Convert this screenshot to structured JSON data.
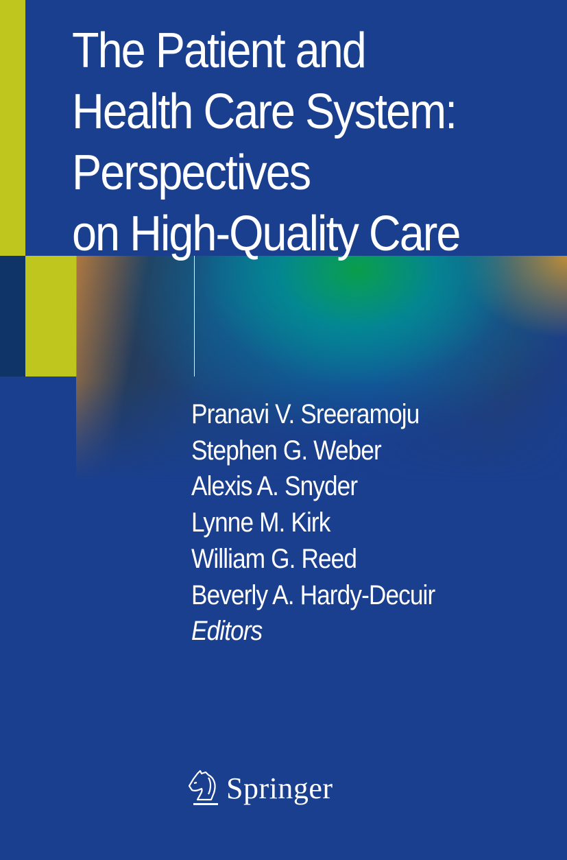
{
  "cover": {
    "title_lines": [
      "The Patient and",
      "Health Care System:",
      "Perspectives",
      "on High-Quality Care"
    ],
    "editors": [
      "Pranavi V. Sreeramoju",
      "Stephen G. Weber",
      "Alexis A. Snyder",
      "Lynne M. Kirk",
      "William G. Reed",
      "Beverly A. Hardy-Decuir"
    ],
    "editors_role": "Editors",
    "publisher": "Springer",
    "publisher_logo_icon": "knight-horse-icon"
  },
  "colors": {
    "background": "#1a3f8f",
    "accent_lime": "#bfc71f",
    "accent_navy": "#0f3468"
  }
}
